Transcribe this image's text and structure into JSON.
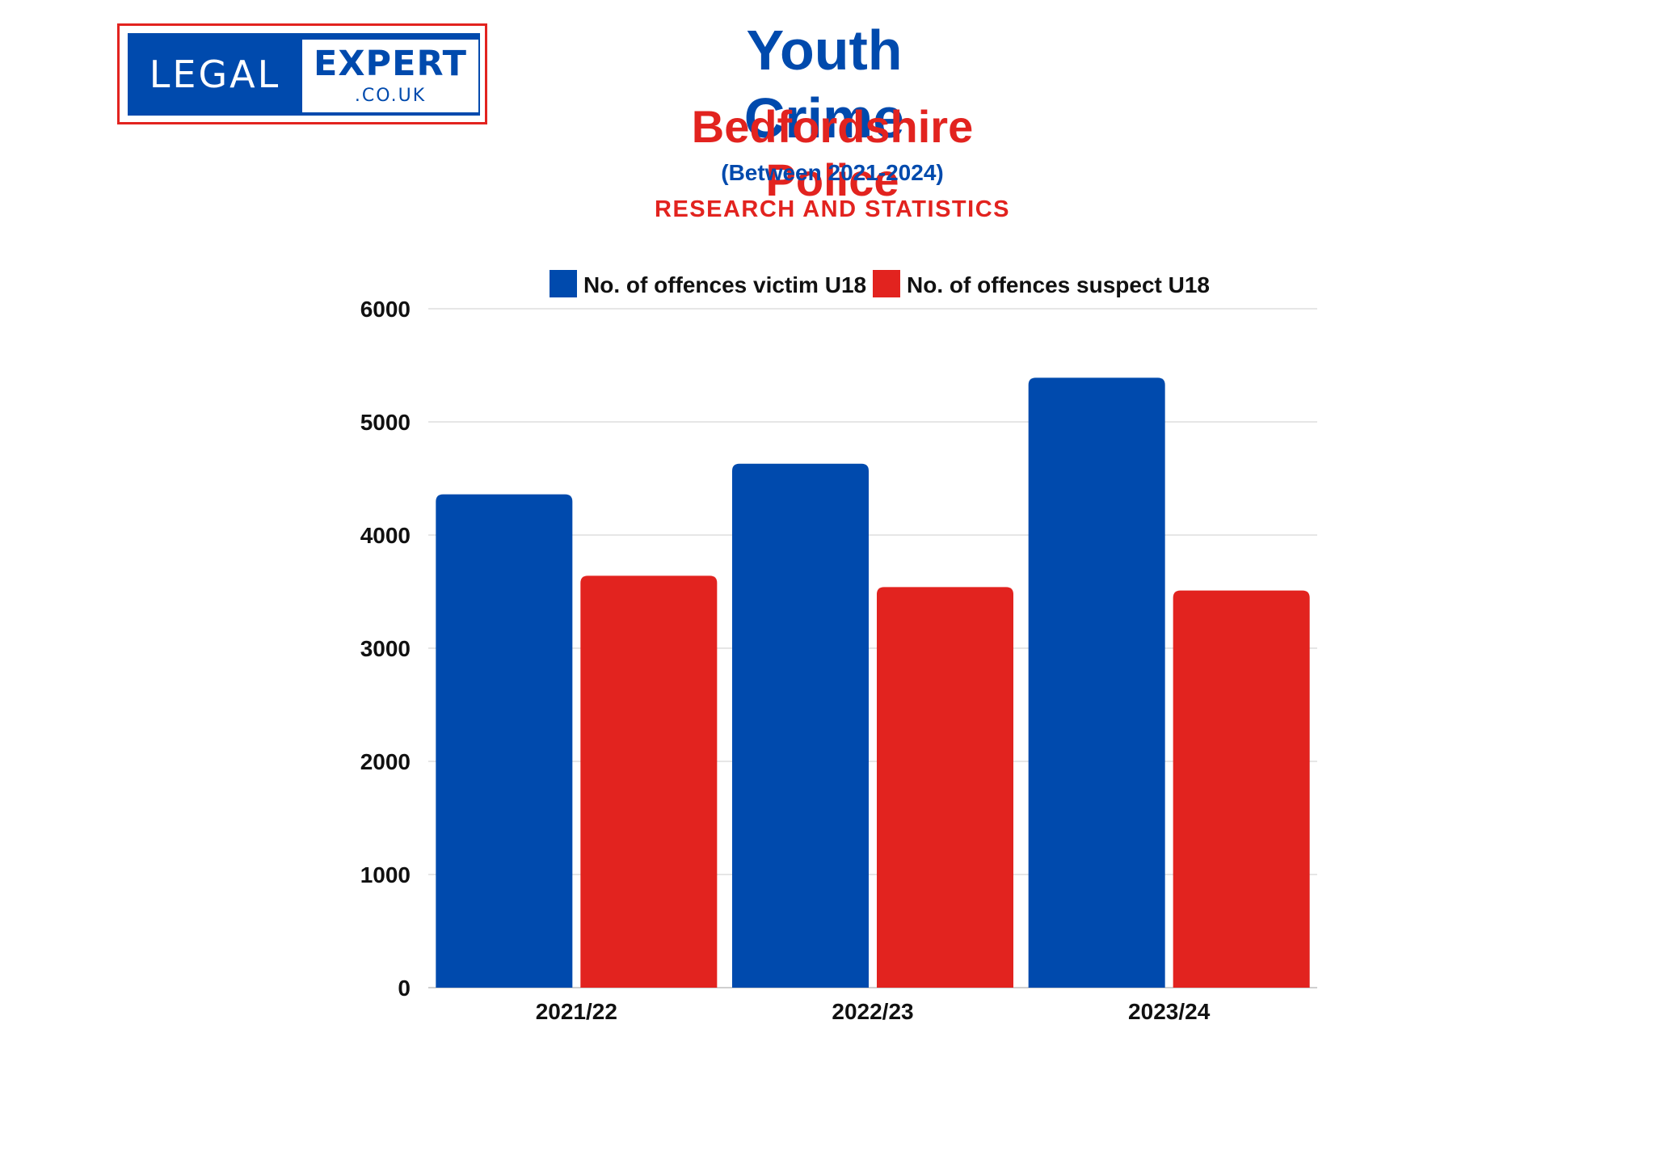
{
  "logo": {
    "legal": "LEGAL",
    "expert": "EXPERT",
    "domain": ".CO.UK"
  },
  "titles": {
    "main": "Youth Crime",
    "subtitle": "Bedfordshire Police",
    "period": "(Between 2021-2024)",
    "research": "RESEARCH AND STATISTICS"
  },
  "colors": {
    "blue": "#004aad",
    "red": "#e2231f",
    "grid": "#e6e6e6"
  },
  "chart_data": {
    "type": "bar",
    "categories": [
      "2021/22",
      "2022/23",
      "2023/24"
    ],
    "series": [
      {
        "name": "No. of offences victim U18",
        "values": [
          4360,
          4630,
          5390
        ],
        "color": "#004aad"
      },
      {
        "name": "No. of offences suspect U18",
        "values": [
          3640,
          3540,
          3510
        ],
        "color": "#e2231f"
      }
    ],
    "ylim": [
      0,
      6000
    ],
    "yticks": [
      "0",
      "1000",
      "2000",
      "3000",
      "4000",
      "5000",
      "6000"
    ],
    "grid": true,
    "legend": "top-center",
    "xlabel": "",
    "ylabel": ""
  }
}
